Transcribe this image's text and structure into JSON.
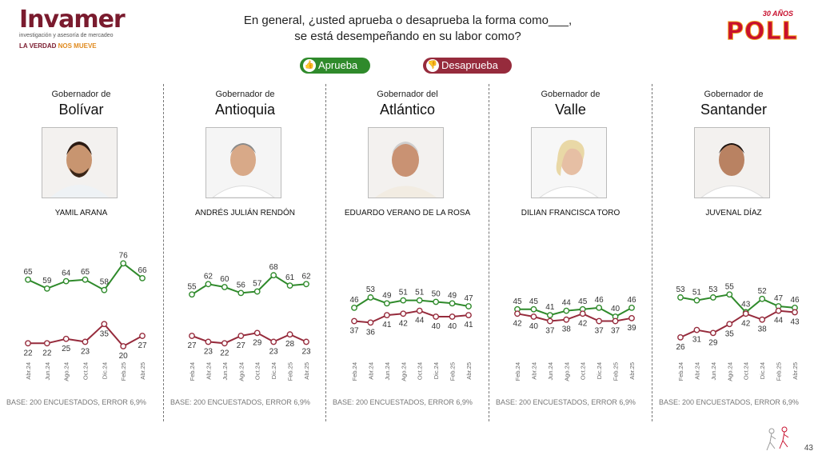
{
  "brand": {
    "name": "Invamer",
    "subtitle": "investigación y asesoría de mercadeo",
    "tagline_a": "LA VERDAD",
    "tagline_b": "NOS MUEVE",
    "color": "#7a1b2e"
  },
  "question": {
    "line1": "En general, ¿usted aprueba o desaprueba la forma como___,",
    "line2": "se está desempeñando en su labor como?"
  },
  "poll_logo": {
    "years": "30 AÑOS",
    "word": "POLL"
  },
  "legend": {
    "approve": "Aprueba",
    "disapprove": "Desaprueba"
  },
  "colors": {
    "approve": "#2f8a2b",
    "disapprove": "#962b3c"
  },
  "panels": [
    {
      "title": "Gobernador de",
      "dept": "Bolívar",
      "person": "YAMIL ARANA",
      "base": "BASE: 200 ENCUESTADOS, ERROR 6,9%"
    },
    {
      "title": "Gobernador de",
      "dept": "Antioquia",
      "person": "ANDRÉS JULIÁN RENDÓN",
      "base": "BASE: 200 ENCUESTADOS, ERROR 6,9%"
    },
    {
      "title": "Gobernador del",
      "dept": "Atlántico",
      "person": "EDUARDO VERANO DE LA ROSA",
      "base": "BASE: 200 ENCUESTADOS, ERROR 6,9%"
    },
    {
      "title": "Gobernador de",
      "dept": "Valle",
      "person": "DILIAN FRANCISCA TORO",
      "base": "BASE: 200 ENCUESTADOS, ERROR 6,9%"
    },
    {
      "title": "Gobernador de",
      "dept": "Santander",
      "person": "JUVENAL DÍAZ",
      "base": "BASE: 200 ENCUESTADOS, ERROR 6,9%"
    }
  ],
  "page_number": "43",
  "chart_data": [
    {
      "type": "line",
      "title": "Bolívar",
      "x": [
        "Abr.24",
        "Jun.24",
        "Ago.24",
        "Oct.24",
        "Dic.24",
        "Feb.25",
        "Abr.25"
      ],
      "series": [
        {
          "name": "Aprueba",
          "values": [
            65,
            59,
            64,
            65,
            58,
            76,
            66
          ]
        },
        {
          "name": "Desaprueba",
          "values": [
            22,
            22,
            25,
            23,
            35,
            20,
            27
          ]
        }
      ]
    },
    {
      "type": "line",
      "title": "Antioquia",
      "x": [
        "Feb.24",
        "Abr.24",
        "Jun.24",
        "Ago.24",
        "Oct.24",
        "Dic.24",
        "Feb.25",
        "Abr.25"
      ],
      "series": [
        {
          "name": "Aprueba",
          "values": [
            55,
            62,
            60,
            56,
            57,
            68,
            61,
            62
          ]
        },
        {
          "name": "Desaprueba",
          "values": [
            27,
            23,
            22,
            27,
            29,
            23,
            28,
            23
          ]
        }
      ]
    },
    {
      "type": "line",
      "title": "Atlántico",
      "x": [
        "Feb.24",
        "Abr.24",
        "Jun.24",
        "Ago.24",
        "Oct.24",
        "Dic.24",
        "Feb.25",
        "Abr.25"
      ],
      "series": [
        {
          "name": "Aprueba",
          "values": [
            46,
            53,
            49,
            51,
            51,
            50,
            49,
            47
          ]
        },
        {
          "name": "Desaprueba",
          "values": [
            37,
            36,
            41,
            42,
            44,
            40,
            40,
            41
          ]
        }
      ]
    },
    {
      "type": "line",
      "title": "Valle",
      "x": [
        "Feb.24",
        "Abr.24",
        "Jun.24",
        "Ago.24",
        "Oct.24",
        "Dic.24",
        "Feb.25",
        "Abr.25"
      ],
      "series": [
        {
          "name": "Aprueba",
          "values": [
            45,
            45,
            41,
            44,
            45,
            46,
            40,
            46
          ]
        },
        {
          "name": "Desaprueba",
          "values": [
            42,
            40,
            37,
            38,
            42,
            37,
            37,
            39
          ]
        }
      ]
    },
    {
      "type": "line",
      "title": "Santander",
      "x": [
        "Feb.24",
        "Abr.24",
        "Jun.24",
        "Ago.24",
        "Oct.24",
        "Dic.24",
        "Feb.25",
        "Abr.25"
      ],
      "series": [
        {
          "name": "Aprueba",
          "values": [
            53,
            51,
            53,
            55,
            43,
            52,
            47,
            46
          ]
        },
        {
          "name": "Desaprueba",
          "values": [
            26,
            31,
            29,
            35,
            42,
            38,
            44,
            43
          ]
        }
      ]
    }
  ]
}
